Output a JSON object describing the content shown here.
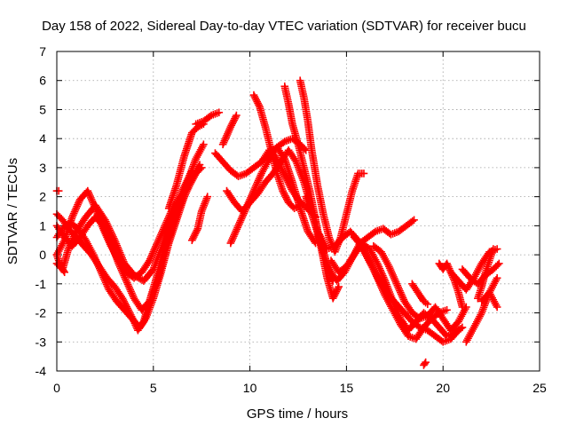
{
  "chart_data": {
    "type": "scatter",
    "title": "Day 158 of 2022, Sidereal Day-to-day VTEC variation (SDTVAR) for receiver bucu",
    "xlabel": "GPS time / hours",
    "ylabel": "SDTVAR / TECUs",
    "xlim": [
      0,
      25
    ],
    "ylim": [
      -4,
      7
    ],
    "xticks": [
      "0",
      "5",
      "10",
      "15",
      "20",
      "25"
    ],
    "yticks": [
      "-4",
      "-3",
      "-2",
      "-1",
      "0",
      "1",
      "2",
      "3",
      "4",
      "5",
      "6",
      "7"
    ],
    "grid": true,
    "marker_color": "#ff0000",
    "series": [
      {
        "x": [
          0.0,
          0.3,
          0.6,
          1.0,
          1.4,
          1.8,
          2.2,
          2.6,
          3.0,
          3.4,
          3.7,
          4.0,
          4.2,
          4.5,
          4.8,
          5.2,
          5.6,
          6.0,
          6.4,
          6.8,
          7.2,
          7.5
        ],
        "y": [
          1.4,
          1.2,
          0.9,
          0.6,
          0.3,
          0.0,
          -0.4,
          -0.8,
          -1.1,
          -1.5,
          -1.9,
          -2.3,
          -2.6,
          -2.3,
          -1.6,
          -0.7,
          0.3,
          1.0,
          1.7,
          2.3,
          2.8,
          3.0
        ]
      },
      {
        "x": [
          0.0,
          0.3,
          0.7,
          1.1,
          1.5,
          1.9,
          2.3,
          2.7,
          3.1,
          3.5,
          3.9,
          4.3,
          4.6,
          5.0,
          5.4,
          5.8,
          6.2,
          6.6,
          7.0,
          7.4
        ],
        "y": [
          0.6,
          0.9,
          1.1,
          0.9,
          0.5,
          0.0,
          -0.6,
          -1.2,
          -1.6,
          -1.9,
          -2.2,
          -2.5,
          -2.2,
          -1.5,
          -0.6,
          0.4,
          1.2,
          2.0,
          2.6,
          3.1
        ]
      },
      {
        "x": [
          0.0,
          0.4,
          0.8,
          1.2,
          1.6,
          2.0,
          2.4,
          2.8,
          3.2,
          3.6,
          4.0,
          4.4,
          4.8,
          5.2,
          5.6,
          6.0,
          6.4,
          6.8,
          7.2,
          7.6
        ],
        "y": [
          1.0,
          0.6,
          0.3,
          0.6,
          1.0,
          1.3,
          1.0,
          0.4,
          -0.3,
          -0.9,
          -1.5,
          -1.9,
          -1.6,
          -0.9,
          0.0,
          1.0,
          1.8,
          2.6,
          3.3,
          3.8
        ]
      },
      {
        "x": [
          0.0,
          0.3,
          0.6,
          1.0,
          1.5,
          2.0,
          2.5,
          3.0,
          3.5,
          4.0,
          4.5,
          5.0,
          5.5,
          6.0,
          6.5,
          7.0
        ],
        "y": [
          -0.3,
          -0.5,
          0.2,
          0.8,
          1.3,
          1.7,
          1.2,
          0.5,
          -0.3,
          -0.7,
          -0.9,
          -0.5,
          0.4,
          1.4,
          2.2,
          2.9
        ]
      },
      {
        "x": [
          0.0,
          0.4,
          0.8,
          1.2,
          1.6,
          2.0,
          2.4,
          2.8,
          3.2,
          3.6,
          4.0,
          4.4,
          4.8,
          5.2,
          5.6,
          6.0,
          6.4,
          6.8
        ],
        "y": [
          0.0,
          0.5,
          1.3,
          1.9,
          2.2,
          1.6,
          0.9,
          0.3,
          -0.2,
          -0.6,
          -0.8,
          -0.6,
          -0.2,
          0.4,
          1.0,
          1.6,
          2.0,
          2.3
        ]
      },
      {
        "x": [
          5.8,
          6.2,
          6.6,
          7.0,
          7.3,
          7.6
        ],
        "y": [
          1.6,
          2.4,
          3.4,
          4.2,
          4.4,
          4.5
        ]
      },
      {
        "x": [
          7.0,
          7.3,
          7.5,
          7.8
        ],
        "y": [
          0.5,
          0.9,
          1.5,
          2.0
        ]
      },
      {
        "x": [
          7.2,
          7.6,
          8.0,
          8.4
        ],
        "y": [
          4.5,
          4.6,
          4.8,
          4.9
        ]
      },
      {
        "x": [
          8.6,
          9.0,
          9.3
        ],
        "y": [
          3.8,
          4.4,
          4.8
        ]
      },
      {
        "x": [
          8.2,
          8.6,
          9.0,
          9.4,
          9.8,
          10.2,
          10.6,
          11.0,
          11.4,
          11.8,
          12.2,
          12.6,
          12.9
        ],
        "y": [
          3.5,
          3.2,
          2.9,
          2.7,
          2.8,
          3.0,
          3.2,
          3.5,
          3.7,
          3.9,
          4.0,
          3.8,
          3.6
        ]
      },
      {
        "x": [
          8.8,
          9.2,
          9.6,
          10.0,
          10.4,
          10.8,
          11.2,
          11.6,
          12.0,
          12.4,
          12.8,
          13.2,
          13.6,
          14.0,
          14.3
        ],
        "y": [
          2.2,
          1.8,
          1.5,
          1.8,
          2.1,
          2.5,
          2.8,
          3.2,
          3.6,
          3.2,
          2.5,
          1.6,
          0.6,
          -0.4,
          -0.9
        ]
      },
      {
        "x": [
          9.0,
          9.4,
          9.8,
          10.2,
          10.6,
          11.0,
          11.4,
          11.8,
          12.2,
          12.6,
          13.0,
          13.4
        ],
        "y": [
          0.4,
          1.0,
          1.6,
          2.2,
          2.8,
          3.3,
          3.7,
          3.3,
          2.5,
          1.6,
          0.8,
          0.4
        ]
      },
      {
        "x": [
          10.2,
          10.5,
          10.8,
          11.1,
          11.4,
          11.7,
          12.0,
          12.3,
          12.6
        ],
        "y": [
          5.5,
          5.1,
          4.4,
          3.6,
          2.8,
          2.2,
          1.8,
          1.6,
          1.7
        ]
      },
      {
        "x": [
          10.7,
          11.0,
          11.3,
          11.6,
          11.9,
          12.2,
          12.5,
          12.8,
          13.1,
          13.4
        ],
        "y": [
          3.3,
          3.6,
          3.4,
          3.0,
          2.6,
          2.2,
          1.9,
          1.7,
          1.5,
          1.3
        ]
      },
      {
        "x": [
          11.8,
          12.0,
          12.2,
          12.5,
          12.8,
          13.1,
          13.4,
          13.7,
          14.0,
          14.3,
          14.6
        ],
        "y": [
          5.8,
          5.2,
          4.5,
          3.8,
          3.0,
          2.2,
          1.2,
          0.2,
          -0.8,
          -1.5,
          -1.1
        ]
      },
      {
        "x": [
          12.6,
          12.8,
          13.0,
          13.2,
          13.5,
          13.8,
          14.1,
          14.4,
          14.7,
          15.0,
          15.3,
          15.6,
          15.9
        ],
        "y": [
          6.0,
          5.4,
          4.6,
          3.6,
          2.4,
          1.4,
          0.6,
          0.1,
          0.6,
          1.4,
          2.2,
          2.8,
          2.8
        ]
      },
      {
        "x": [
          12.9,
          13.3,
          13.7,
          14.1,
          14.5,
          14.9,
          15.3,
          15.7,
          16.1,
          16.5,
          16.9,
          17.3,
          17.7,
          18.1,
          18.5
        ],
        "y": [
          2.0,
          1.2,
          0.3,
          -0.5,
          -0.9,
          -0.6,
          -0.1,
          0.4,
          0.6,
          0.8,
          0.9,
          0.7,
          0.8,
          1.0,
          1.2
        ]
      },
      {
        "x": [
          13.6,
          14.0,
          14.4,
          14.8,
          15.2,
          15.6,
          16.0,
          16.4,
          16.8,
          17.2,
          17.6,
          18.0,
          18.4,
          18.8,
          19.2,
          19.6,
          20.0,
          20.4,
          20.8
        ],
        "y": [
          0.7,
          0.2,
          0.3,
          0.6,
          0.8,
          0.5,
          0.0,
          -0.5,
          -1.0,
          -1.4,
          -1.7,
          -2.0,
          -2.3,
          -2.5,
          -2.6,
          -2.8,
          -3.0,
          -2.9,
          -2.6
        ]
      },
      {
        "x": [
          14.2,
          14.6,
          15.0,
          15.4,
          15.8,
          16.2,
          16.6,
          17.0,
          17.4,
          17.8,
          18.2,
          18.6,
          19.0,
          19.4,
          19.8,
          20.2,
          20.6,
          21.0
        ],
        "y": [
          -0.2,
          -0.6,
          -0.4,
          0.0,
          0.4,
          0.2,
          -0.3,
          -0.9,
          -1.6,
          -2.2,
          -2.6,
          -2.3,
          -2.0,
          -2.2,
          -2.5,
          -2.8,
          -2.7,
          -2.5
        ]
      },
      {
        "x": [
          15.4,
          15.8,
          16.2,
          16.6,
          17.0,
          17.4,
          17.8,
          18.2,
          18.6,
          19.0,
          19.4,
          19.8,
          20.2
        ],
        "y": [
          0.6,
          0.3,
          -0.2,
          -0.8,
          -1.4,
          -1.9,
          -2.4,
          -2.8,
          -2.9,
          -2.5,
          -2.2,
          -2.0,
          -1.9
        ]
      },
      {
        "x": [
          16.4,
          16.8,
          17.2,
          17.6,
          18.0,
          18.4,
          18.8,
          19.2,
          19.6,
          20.0,
          20.4,
          20.8,
          21.2
        ],
        "y": [
          0.3,
          0.1,
          -0.4,
          -1.0,
          -1.6,
          -2.0,
          -2.2,
          -2.1,
          -1.8,
          -2.2,
          -2.6,
          -2.3,
          -1.8
        ]
      },
      {
        "x": [
          18.4,
          18.8,
          19.0,
          19.2
        ],
        "y": [
          -1.0,
          -1.4,
          -1.6,
          -1.7
        ]
      },
      {
        "x": [
          19.0,
          19.1
        ],
        "y": [
          -3.8,
          -3.7
        ]
      },
      {
        "x": [
          19.8,
          20.0,
          20.2,
          20.4,
          20.6,
          20.8,
          21.0
        ],
        "y": [
          -0.3,
          -0.5,
          -0.3,
          -0.6,
          -0.9,
          -1.3,
          -1.8
        ]
      },
      {
        "x": [
          20.4,
          20.8,
          21.2,
          21.6,
          22.0,
          22.4,
          22.8
        ],
        "y": [
          -0.6,
          -0.9,
          -1.2,
          -0.8,
          -0.3,
          0.1,
          0.2
        ]
      },
      {
        "x": [
          21.2,
          21.6,
          22.0,
          22.4,
          22.8
        ],
        "y": [
          -3.0,
          -2.5,
          -2.0,
          -1.3,
          -0.8
        ]
      },
      {
        "x": [
          21.0,
          21.4,
          21.8,
          22.2,
          22.6,
          22.9
        ],
        "y": [
          -0.5,
          -0.8,
          -1.0,
          -0.7,
          -0.5,
          -0.3
        ]
      },
      {
        "x": [
          21.8,
          22.0,
          22.2,
          22.4,
          22.6
        ],
        "y": [
          -1.5,
          -1.1,
          -0.6,
          -0.2,
          0.2
        ]
      },
      {
        "x": [
          22.0,
          22.4,
          22.8
        ],
        "y": [
          -1.6,
          -1.3,
          -1.8
        ]
      },
      {
        "x": [
          0.0,
          0.1
        ],
        "y": [
          2.2,
          2.2
        ]
      },
      {
        "x": [
          0.0,
          0.2,
          0.4
        ],
        "y": [
          0.0,
          -0.4,
          -0.6
        ]
      }
    ]
  }
}
